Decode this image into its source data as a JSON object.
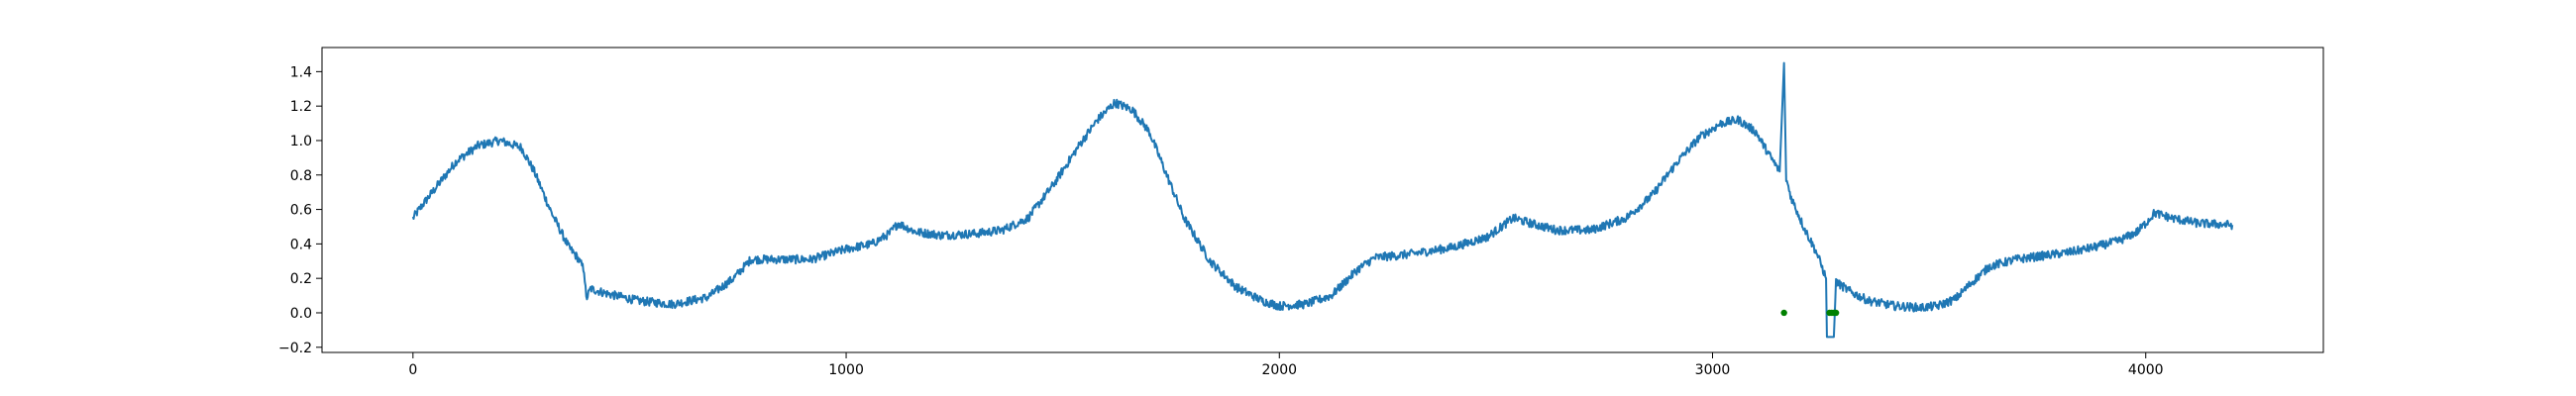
{
  "chart_data": {
    "type": "line",
    "title": "",
    "xlabel": "",
    "ylabel": "",
    "xlim": [
      -210,
      4410
    ],
    "ylim": [
      -0.23,
      1.54
    ],
    "x_ticks": [
      0,
      1000,
      2000,
      3000,
      4000
    ],
    "x_tick_labels": [
      "0",
      "1000",
      "2000",
      "3000",
      "4000"
    ],
    "y_ticks": [
      -0.2,
      0.0,
      0.2,
      0.4,
      0.6,
      0.8,
      1.0,
      1.2,
      1.4
    ],
    "y_tick_labels": [
      "−0.2",
      "0.0",
      "0.2",
      "0.4",
      "0.6",
      "0.8",
      "1.0",
      "1.2",
      "1.4"
    ],
    "grid": false,
    "legend": "none",
    "series": [
      {
        "color": "#1f77b4",
        "noise": 0.025,
        "x": [
          0,
          20,
          60,
          100,
          150,
          200,
          250,
          280,
          320,
          360,
          380,
          395,
          400,
          410,
          450,
          520,
          600,
          680,
          740,
          780,
          850,
          920,
          1000,
          1060,
          1100,
          1120,
          1160,
          1220,
          1300,
          1360,
          1420,
          1480,
          1540,
          1580,
          1620,
          1660,
          1700,
          1740,
          1780,
          1840,
          1900,
          1960,
          2000,
          2060,
          2120,
          2180,
          2220,
          2300,
          2400,
          2480,
          2540,
          2580,
          2640,
          2720,
          2800,
          2860,
          2920,
          2970,
          3020,
          3060,
          3100,
          3130,
          3155,
          3165,
          3170,
          3180,
          3210,
          3240,
          3255,
          3262,
          3264,
          3280,
          3285,
          3290,
          3320,
          3360,
          3420,
          3480,
          3520,
          3560,
          3600,
          3640,
          3700,
          3760,
          3820,
          3880,
          3940,
          3980,
          4000,
          4020,
          4060,
          4120,
          4200
        ],
        "y": [
          0.55,
          0.62,
          0.75,
          0.88,
          0.97,
          1.0,
          0.96,
          0.82,
          0.58,
          0.38,
          0.32,
          0.25,
          0.08,
          0.14,
          0.11,
          0.07,
          0.05,
          0.09,
          0.2,
          0.31,
          0.31,
          0.31,
          0.37,
          0.4,
          0.46,
          0.52,
          0.47,
          0.45,
          0.46,
          0.48,
          0.55,
          0.75,
          0.98,
          1.12,
          1.22,
          1.18,
          1.05,
          0.8,
          0.55,
          0.3,
          0.15,
          0.07,
          0.04,
          0.05,
          0.1,
          0.25,
          0.32,
          0.34,
          0.38,
          0.44,
          0.55,
          0.52,
          0.48,
          0.48,
          0.55,
          0.68,
          0.88,
          1.02,
          1.1,
          1.12,
          1.05,
          0.92,
          0.82,
          1.45,
          0.78,
          0.68,
          0.5,
          0.35,
          0.25,
          0.2,
          -0.14,
          -0.14,
          0.18,
          0.17,
          0.12,
          0.07,
          0.04,
          0.03,
          0.04,
          0.08,
          0.18,
          0.27,
          0.31,
          0.33,
          0.35,
          0.38,
          0.42,
          0.47,
          0.52,
          0.58,
          0.55,
          0.52,
          0.51
        ]
      }
    ],
    "markers": {
      "color": "#008000",
      "x": [
        3165,
        3270,
        3275,
        3280,
        3285
      ],
      "y": [
        0.0,
        0.0,
        0.0,
        0.0,
        0.0
      ]
    }
  }
}
